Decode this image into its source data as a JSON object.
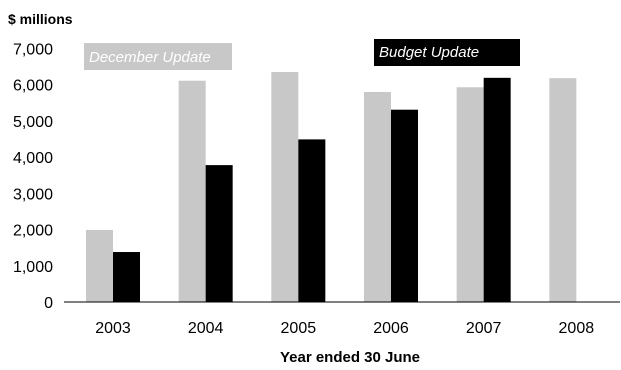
{
  "chart_data": {
    "type": "bar",
    "unit_label": "$ millions",
    "xlabel": "Year ended 30 June",
    "ylabel": "",
    "ylim": [
      0,
      7000
    ],
    "yticks": [
      0,
      1000,
      2000,
      3000,
      4000,
      5000,
      6000,
      7000
    ],
    "ytick_labels": [
      "0",
      "1,000",
      "2,000",
      "3,000",
      "4,000",
      "5,000",
      "6,000",
      "7,000"
    ],
    "categories": [
      "2003",
      "2004",
      "2005",
      "2006",
      "2007",
      "2008"
    ],
    "grid": false,
    "legend_placement": "inline-top",
    "series": [
      {
        "name": "December Update",
        "color": "#c8c8c8",
        "values": [
          1990,
          6110,
          6350,
          5800,
          5930,
          6180
        ]
      },
      {
        "name": "Budget Update",
        "color": "#000000",
        "values": [
          1380,
          3780,
          4490,
          5310,
          6190,
          null
        ]
      }
    ]
  }
}
